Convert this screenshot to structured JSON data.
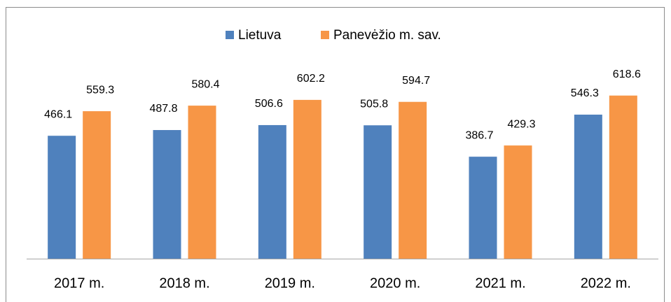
{
  "chart_data": {
    "type": "bar",
    "categories": [
      "2017 m.",
      "2018 m.",
      "2019 m.",
      "2020 m.",
      "2021 m.",
      "2022 m."
    ],
    "series": [
      {
        "name": "Lietuva",
        "color": "#4f81bd",
        "values": [
          466.1,
          487.8,
          506.6,
          505.8,
          386.7,
          546.3
        ]
      },
      {
        "name": "Panevėžio m. sav.",
        "color": "#f79646",
        "values": [
          559.3,
          580.4,
          602.2,
          594.7,
          429.3,
          618.6
        ]
      }
    ],
    "ylim": [
      0,
      700
    ],
    "legend": "top",
    "grid": false
  }
}
